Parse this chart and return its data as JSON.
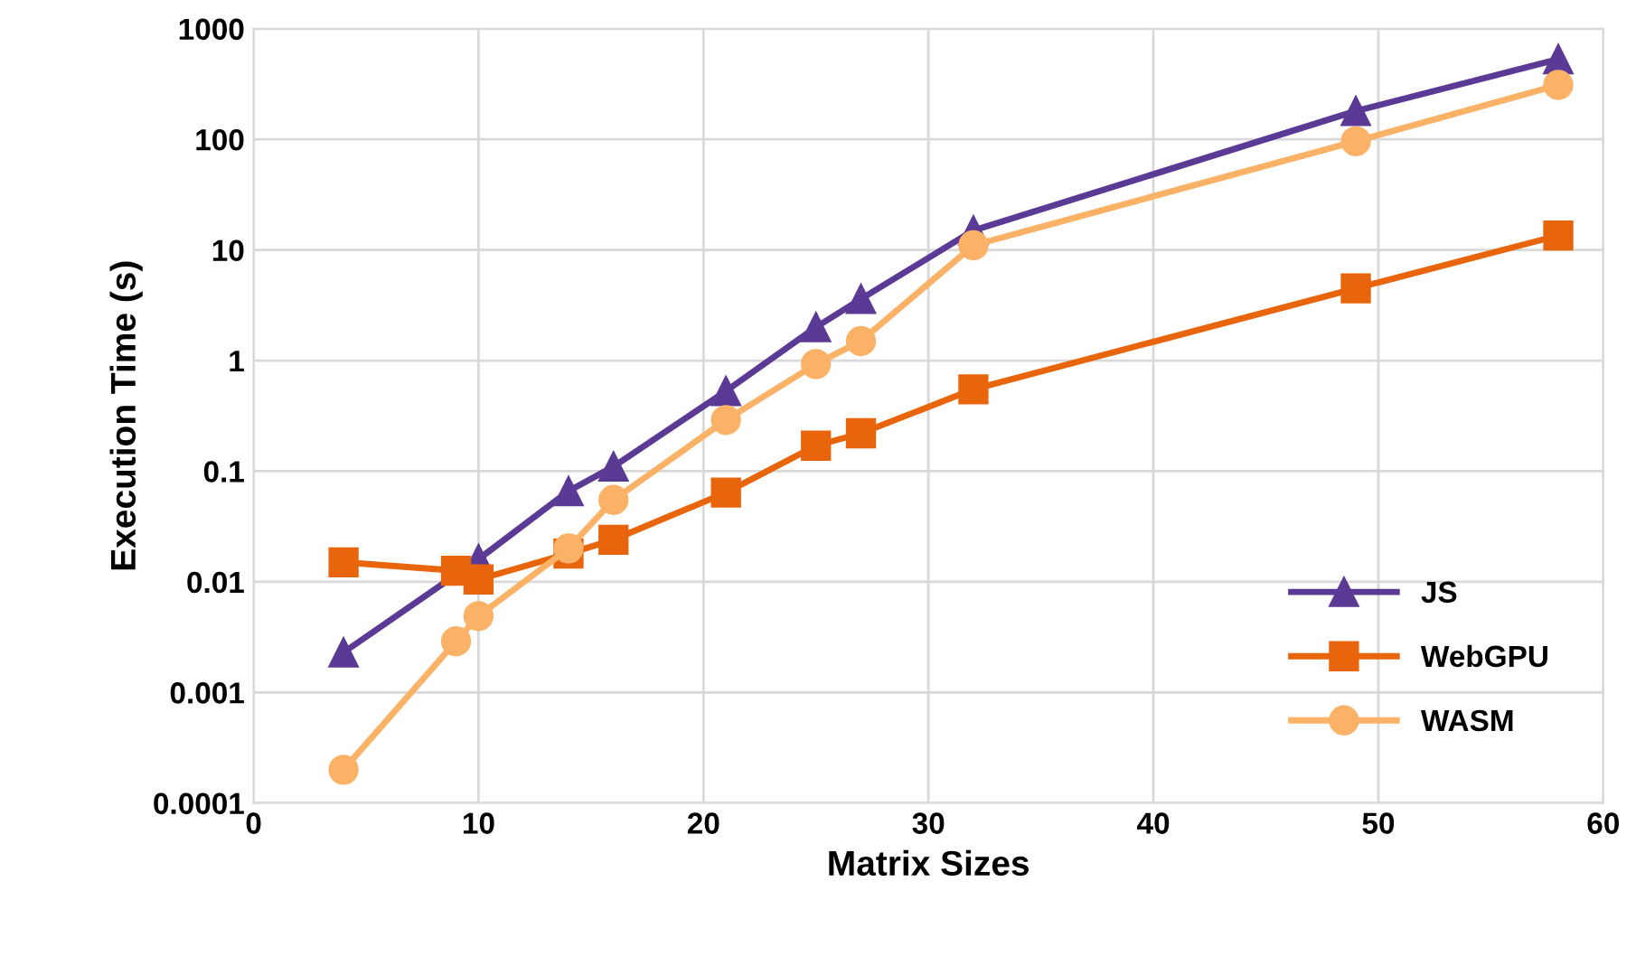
{
  "chart_data": {
    "type": "line",
    "xlabel": "Matrix Sizes",
    "ylabel": "Execution Time (s)",
    "log": "y",
    "xlim": [
      0,
      60
    ],
    "xticks": [
      0,
      10,
      20,
      30,
      40,
      50,
      60
    ],
    "ylim": [
      0.0001,
      1000
    ],
    "yticks": [
      0.0001,
      0.001,
      0.01,
      0.1,
      1,
      10,
      100,
      1000
    ],
    "grid": true,
    "legend": "lower right",
    "series": [
      {
        "name": "JS",
        "color": "#5b3a96",
        "marker": "triangle",
        "x": [
          4,
          10,
          14,
          16,
          21,
          25,
          27,
          32,
          49,
          58
        ],
        "values": [
          0.0023,
          0.016,
          0.066,
          0.11,
          0.53,
          2.0,
          3.6,
          15,
          180,
          530
        ]
      },
      {
        "name": "WebGPU",
        "color": "#e8650c",
        "marker": "square",
        "x": [
          4,
          9,
          10,
          14,
          16,
          21,
          25,
          27,
          32,
          49,
          58
        ],
        "values": [
          0.015,
          0.0126,
          0.0105,
          0.018,
          0.024,
          0.064,
          0.17,
          0.22,
          0.55,
          4.5,
          13.5
        ]
      },
      {
        "name": "WASM",
        "color": "#fbb267",
        "marker": "circle",
        "x": [
          4,
          9,
          10,
          14,
          16,
          21,
          25,
          27,
          32,
          49,
          58
        ],
        "values": [
          0.0002,
          0.0029,
          0.0049,
          0.02,
          0.055,
          0.29,
          0.93,
          1.5,
          11,
          96,
          310
        ]
      }
    ]
  }
}
